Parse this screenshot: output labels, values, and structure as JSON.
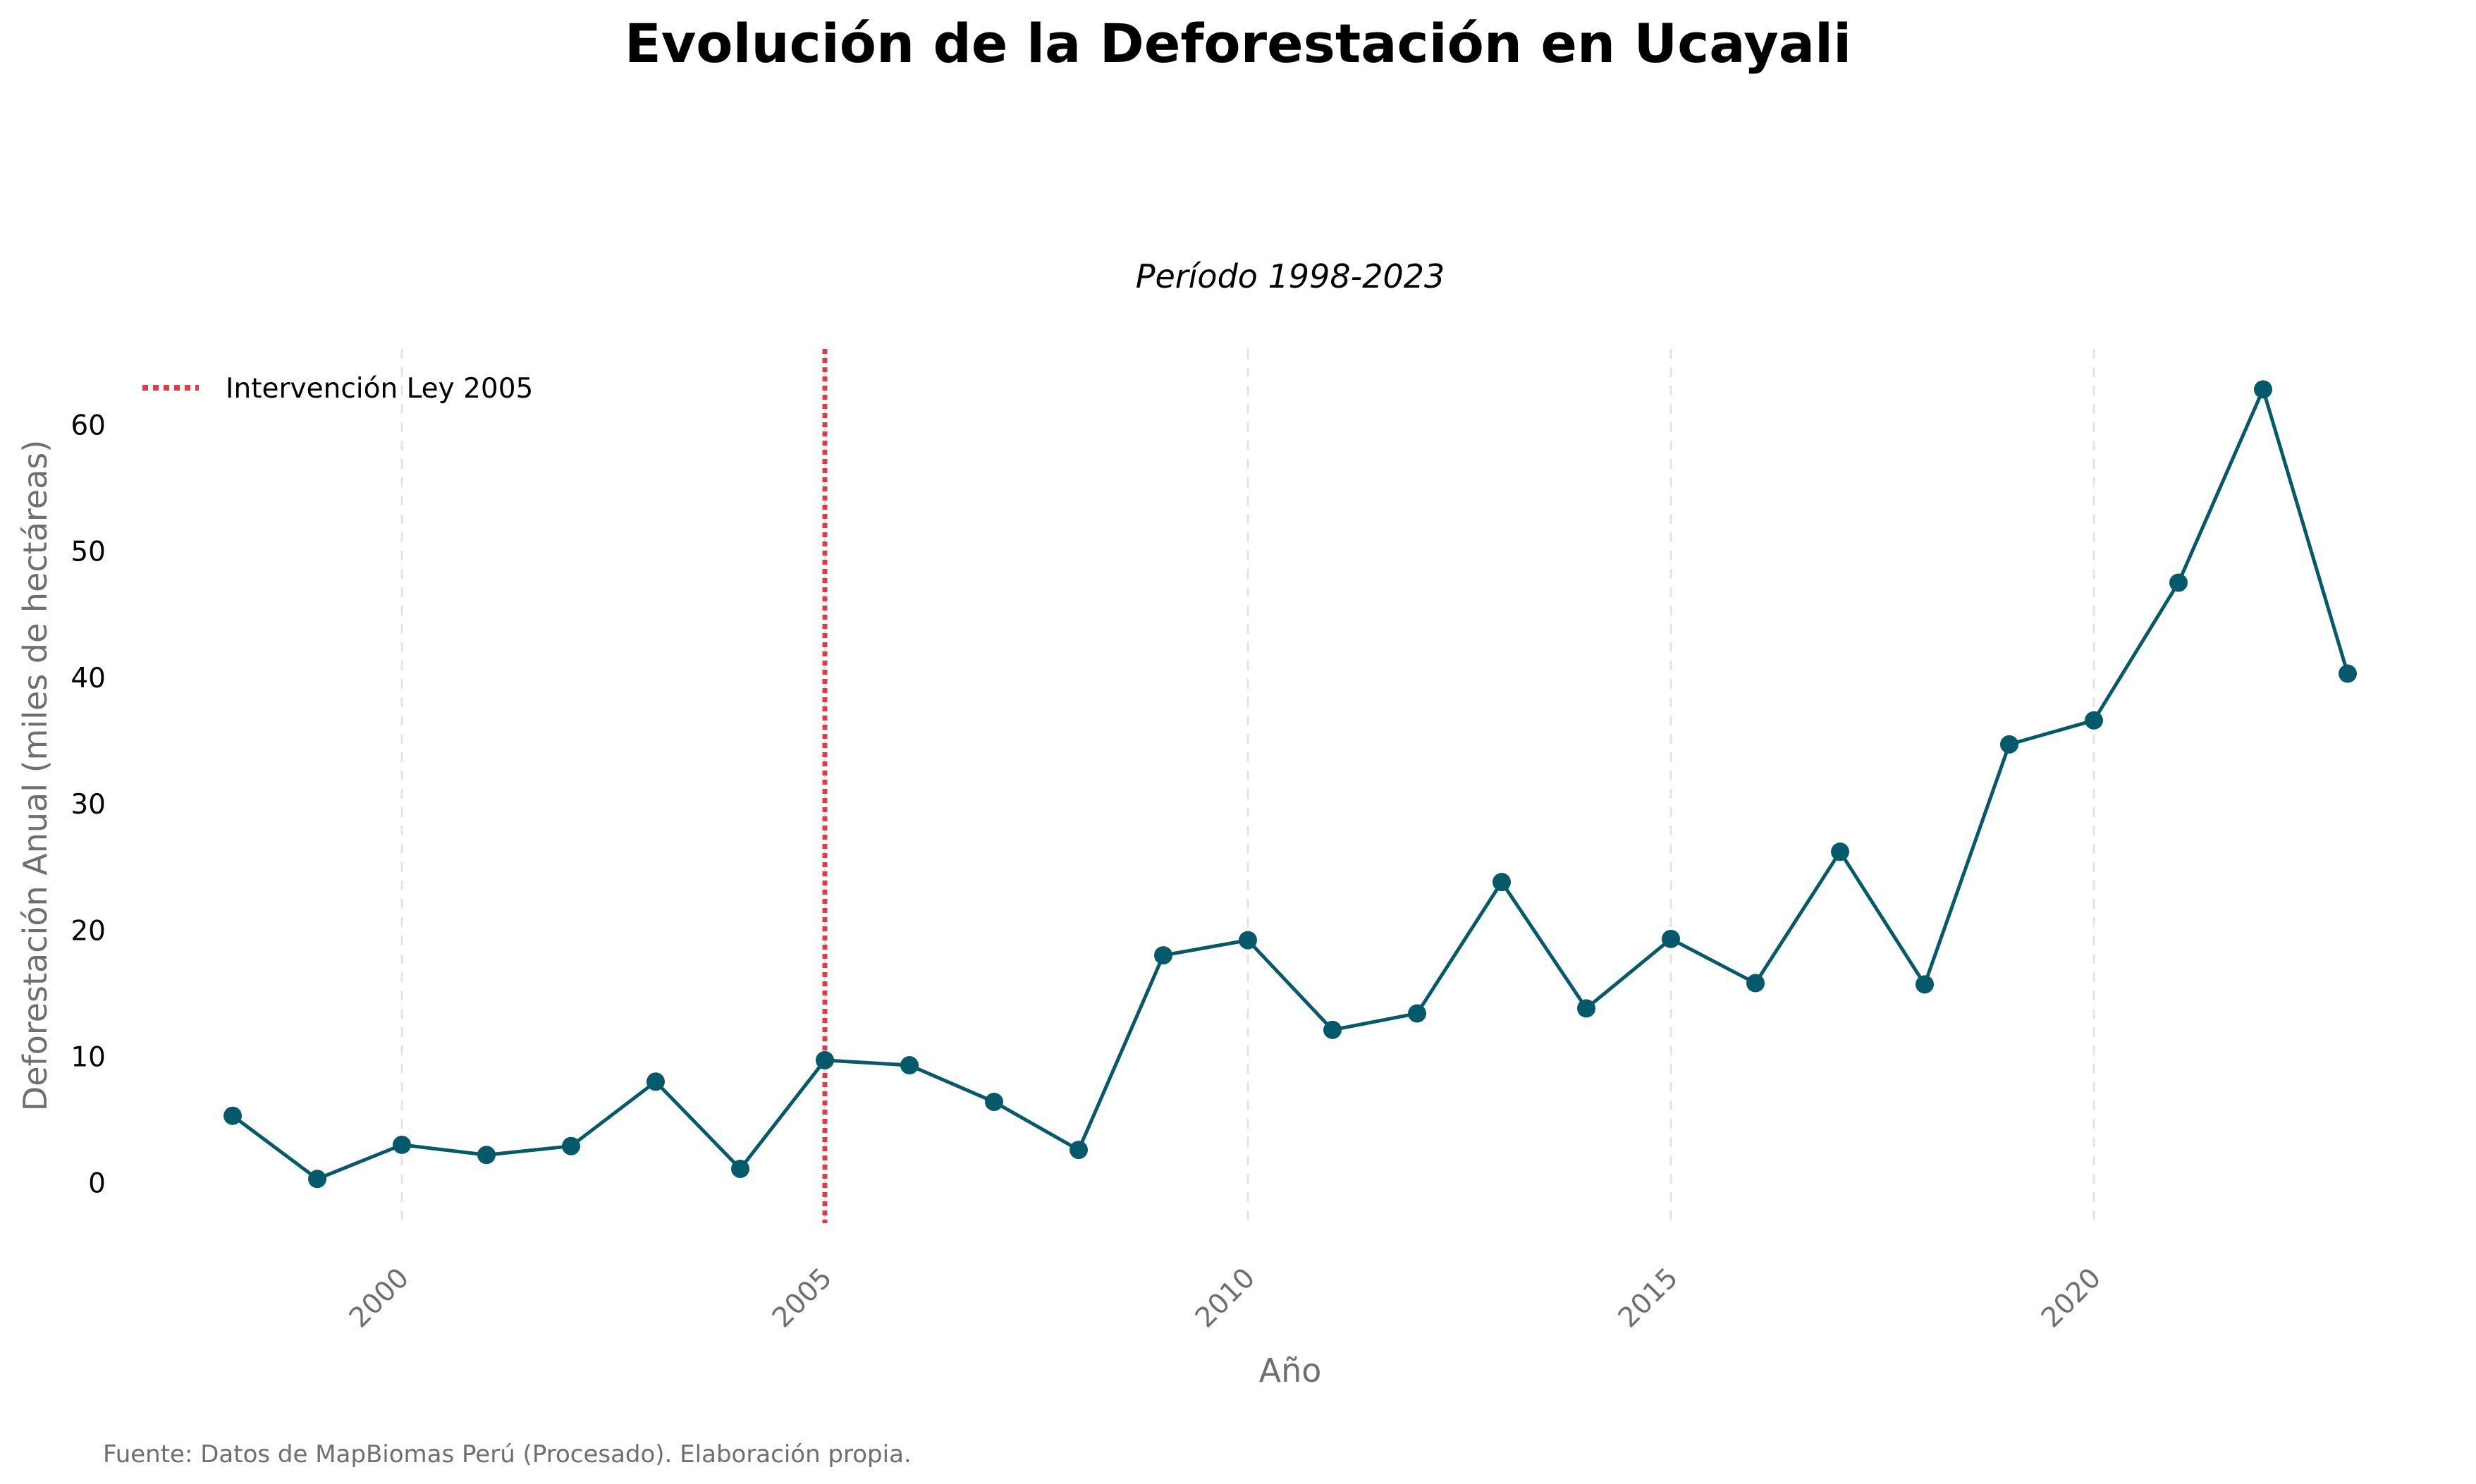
{
  "chart_data": {
    "type": "line",
    "title": "Evolución de la Deforestación en Ucayali",
    "subtitle": "Período 1998-2023",
    "xlabel": "Año",
    "ylabel": "Deforestación Anual (miles de hectáreas)",
    "caption": "Fuente: Datos de MapBiomas Perú (Procesado). Elaboración propia.",
    "xlim": [
      1997,
      2024
    ],
    "ylim": [
      -3.2,
      66
    ],
    "xticks": [
      2000,
      2005,
      2010,
      2015,
      2020
    ],
    "yticks": [
      0,
      10,
      20,
      30,
      40,
      50,
      60
    ],
    "grid": "x-dashed",
    "legend_position": "top-left",
    "colors": {
      "line": "#045a6b",
      "marker": "#045a6b",
      "intervention": "#e63946",
      "grid": "#e3e3e3"
    },
    "series": [
      {
        "name": "",
        "x": [
          1998,
          1999,
          2000,
          2001,
          2002,
          2003,
          2004,
          2005,
          2006,
          2007,
          2008,
          2009,
          2010,
          2011,
          2012,
          2013,
          2014,
          2015,
          2016,
          2017,
          2018,
          2019,
          2020,
          2021,
          2022,
          2023
        ],
        "y": [
          5.3,
          0.3,
          3.0,
          2.2,
          2.9,
          8.0,
          1.1,
          9.7,
          9.3,
          6.4,
          2.6,
          18.0,
          19.2,
          12.1,
          13.4,
          23.8,
          13.8,
          19.3,
          15.8,
          26.2,
          15.7,
          34.7,
          36.6,
          47.5,
          62.8,
          40.3
        ]
      }
    ],
    "annotations": [
      {
        "type": "vline",
        "x": 2005,
        "label": "Intervención Ley 2005",
        "style": "dotted"
      }
    ]
  }
}
